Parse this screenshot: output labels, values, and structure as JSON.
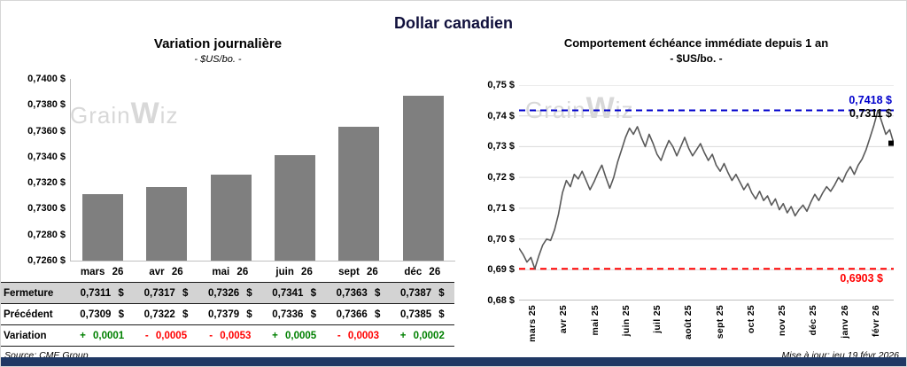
{
  "header": {
    "title": "Dollar canadien"
  },
  "watermark": {
    "prefix": "Grain",
    "mid": "W",
    "suffix": "iz"
  },
  "table": {
    "row_labels": [
      "Fermeture",
      "Précédent",
      "Variation"
    ],
    "months": [
      "mars 26",
      "avr 26",
      "mai 26",
      "juin 26",
      "sept 26",
      "déc 26"
    ],
    "fermeture": [
      "0,7311 $",
      "0,7317 $",
      "0,7326 $",
      "0,7341 $",
      "0,7363 $",
      "0,7387 $"
    ],
    "precedent": [
      "0,7309 $",
      "0,7322 $",
      "0,7379 $",
      "0,7336 $",
      "0,7366 $",
      "0,7385 $"
    ],
    "variation": [
      {
        "text": "+ 0,0001",
        "positive": true
      },
      {
        "text": "- 0,0005",
        "positive": false
      },
      {
        "text": "- 0,0053",
        "positive": false
      },
      {
        "text": "+ 0,0005",
        "positive": true
      },
      {
        "text": "- 0,0003",
        "positive": false
      },
      {
        "text": "+ 0,0002",
        "positive": true
      }
    ]
  },
  "footer": {
    "source": "Source: CME Group",
    "updated": "Mise à jour: jeu 19 févr 2026"
  },
  "colors": {
    "bar": "#7F7F7F",
    "line": "#595959",
    "high": "#0000CC",
    "low": "#FF0000",
    "positive": "#008000",
    "negative": "#FF0000",
    "navy": "#1F3864",
    "shaded_row": "#D3D3D3"
  },
  "chart_data": [
    {
      "type": "bar",
      "title": "Variation  journalière",
      "subtitle": "- $US/bo. -",
      "categories": [
        "mars 26",
        "avr 26",
        "mai 26",
        "juin 26",
        "sept 26",
        "déc 26"
      ],
      "values": [
        0.7311,
        0.7317,
        0.7326,
        0.7341,
        0.7363,
        0.7387
      ],
      "ylim": [
        0.726,
        0.74
      ],
      "ytick_values": [
        0.74,
        0.738,
        0.736,
        0.734,
        0.732,
        0.73,
        0.728,
        0.726
      ],
      "ytick_labels": [
        "0,7400 $",
        "0,7380 $",
        "0,7360 $",
        "0,7340 $",
        "0,7320 $",
        "0,7300 $",
        "0,7280 $",
        "0,7260 $"
      ],
      "grid": false,
      "bar_color": "#7F7F7F"
    },
    {
      "type": "line",
      "title": "Comportement échéance immédiate depuis 1 an",
      "subtitle": "- $US/bo. -",
      "x_labels": [
        "mars 25",
        "avr 25",
        "mai 25",
        "juin 25",
        "juil 25",
        "août 25",
        "sept 25",
        "oct 25",
        "nov 25",
        "déc 25",
        "janv 26",
        "févr 26"
      ],
      "ylim": [
        0.68,
        0.75
      ],
      "ytick_values": [
        0.75,
        0.74,
        0.73,
        0.72,
        0.71,
        0.7,
        0.69,
        0.68
      ],
      "ytick_labels": [
        "0,75 $",
        "0,74 $",
        "0,73 $",
        "0,72 $",
        "0,71 $",
        "0,70 $",
        "0,69 $",
        "0,68 $"
      ],
      "grid": true,
      "line_color": "#595959",
      "high_line": {
        "value": 0.7418,
        "label": "0,7418 $",
        "color": "#0000CC",
        "style": "dashed"
      },
      "low_line": {
        "value": 0.6903,
        "label": "0,6903 $",
        "color": "#FF0000",
        "style": "dashed"
      },
      "last_point": {
        "value": 0.7311,
        "label": "0,7311 $",
        "color": "#000000"
      },
      "values": [
        0.697,
        0.695,
        0.6925,
        0.694,
        0.6903,
        0.6945,
        0.698,
        0.7,
        0.6995,
        0.703,
        0.708,
        0.715,
        0.719,
        0.717,
        0.721,
        0.7195,
        0.722,
        0.719,
        0.716,
        0.7185,
        0.7215,
        0.724,
        0.72,
        0.7165,
        0.72,
        0.725,
        0.729,
        0.733,
        0.736,
        0.734,
        0.7365,
        0.733,
        0.73,
        0.734,
        0.731,
        0.7275,
        0.7255,
        0.729,
        0.732,
        0.73,
        0.727,
        0.73,
        0.733,
        0.7295,
        0.727,
        0.729,
        0.731,
        0.728,
        0.7255,
        0.7275,
        0.724,
        0.722,
        0.7245,
        0.7215,
        0.719,
        0.721,
        0.7185,
        0.716,
        0.718,
        0.715,
        0.713,
        0.7155,
        0.7125,
        0.714,
        0.711,
        0.713,
        0.7095,
        0.7115,
        0.7085,
        0.7105,
        0.7075,
        0.7095,
        0.711,
        0.709,
        0.712,
        0.7145,
        0.7125,
        0.715,
        0.717,
        0.7155,
        0.7175,
        0.72,
        0.7185,
        0.7215,
        0.7235,
        0.721,
        0.724,
        0.726,
        0.729,
        0.733,
        0.737,
        0.7418,
        0.738,
        0.734,
        0.7355,
        0.7311
      ]
    }
  ]
}
